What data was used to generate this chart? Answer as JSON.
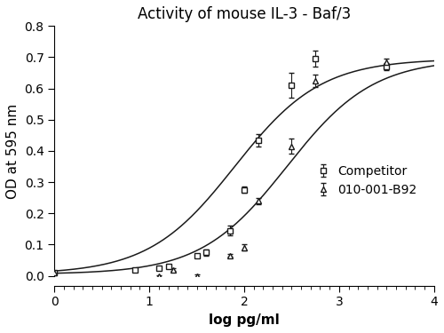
{
  "title": "Activity of mouse IL-3 - Baf/3",
  "xlabel": "log pg/ml",
  "ylabel": "OD at 595 nm",
  "xlim": [
    0,
    4
  ],
  "ylim": [
    0,
    0.8
  ],
  "xticks": [
    0,
    1,
    2,
    3,
    4
  ],
  "yticks": [
    0.0,
    0.1,
    0.2,
    0.3,
    0.4,
    0.5,
    0.6,
    0.7,
    0.8
  ],
  "competitor_x": [
    0.0,
    0.85,
    1.1,
    1.2,
    1.5,
    1.6,
    1.85,
    2.0,
    2.15,
    2.5,
    2.75,
    3.5
  ],
  "competitor_y": [
    0.01,
    0.02,
    0.025,
    0.03,
    0.065,
    0.075,
    0.145,
    0.275,
    0.435,
    0.61,
    0.695,
    0.67
  ],
  "competitor_yerr": [
    0.005,
    0.005,
    0.005,
    0.005,
    0.005,
    0.01,
    0.015,
    0.01,
    0.02,
    0.04,
    0.025,
    0.01
  ],
  "b92_x": [
    0.0,
    1.1,
    1.25,
    1.5,
    1.85,
    2.0,
    2.15,
    2.5,
    2.75,
    3.5
  ],
  "b92_y": [
    0.01,
    0.0,
    0.02,
    0.0,
    0.065,
    0.09,
    0.24,
    0.415,
    0.625,
    0.685
  ],
  "b92_yerr": [
    0.005,
    0.003,
    0.005,
    0.005,
    0.005,
    0.01,
    0.01,
    0.025,
    0.02,
    0.01
  ],
  "comp_sigmoid_params": [
    0.69,
    1.9,
    2.2,
    0.005
  ],
  "b92_sigmoid_params": [
    0.69,
    2.45,
    2.2,
    0.005
  ],
  "background_color": "#ffffff",
  "line_color": "#1a1a1a",
  "marker_color": "#1a1a1a",
  "title_fontsize": 12,
  "label_fontsize": 11,
  "tick_fontsize": 10,
  "legend_fontsize": 10
}
